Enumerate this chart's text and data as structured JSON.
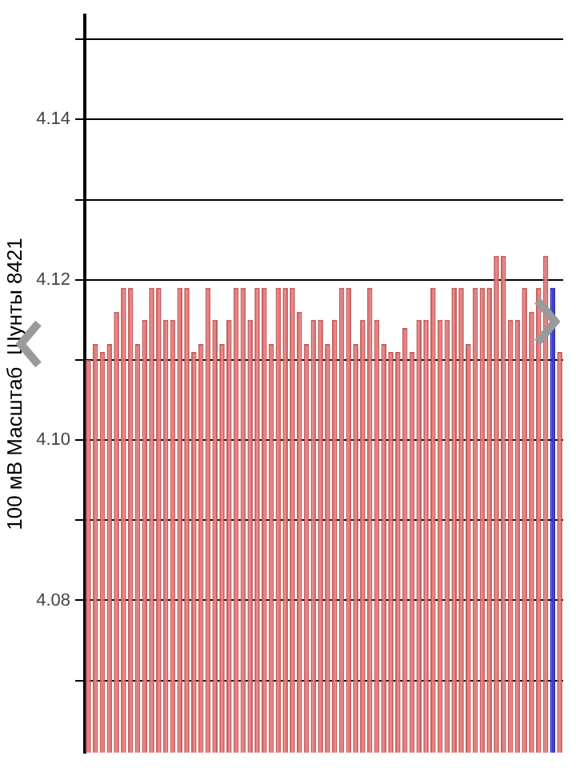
{
  "chart_data": {
    "type": "bar",
    "ylabel": "100 мВ Масштаб  Шунты 8421",
    "categories": [
      null,
      null,
      null,
      null,
      null,
      null,
      null,
      null,
      null,
      null,
      null,
      null,
      null,
      null,
      null,
      null,
      null,
      null,
      null,
      null,
      null,
      null,
      null,
      null,
      null,
      null,
      null,
      null,
      null,
      null,
      null,
      null,
      null,
      null,
      null,
      null,
      null,
      null,
      null,
      null,
      null,
      null,
      null,
      null,
      null,
      null,
      null,
      null,
      null,
      null,
      null,
      null,
      null,
      null,
      null,
      null,
      null,
      null,
      null,
      null,
      null,
      null,
      null,
      null,
      null,
      null,
      null,
      null
    ],
    "values": [
      4.11,
      4.112,
      4.111,
      4.112,
      4.116,
      4.119,
      4.119,
      4.112,
      4.115,
      4.119,
      4.119,
      4.115,
      4.115,
      4.119,
      4.119,
      4.111,
      4.112,
      4.119,
      4.115,
      4.112,
      4.115,
      4.119,
      4.119,
      4.115,
      4.119,
      4.119,
      4.112,
      4.119,
      4.119,
      4.119,
      4.116,
      4.112,
      4.115,
      4.115,
      4.112,
      4.115,
      4.119,
      4.119,
      4.112,
      4.115,
      4.119,
      4.115,
      4.112,
      4.111,
      4.111,
      4.114,
      4.111,
      4.115,
      4.115,
      4.119,
      4.115,
      4.115,
      4.119,
      4.119,
      4.112,
      4.119,
      4.119,
      4.119,
      4.123,
      4.123,
      4.115,
      4.115,
      4.119,
      4.116,
      4.119,
      4.123,
      4.119,
      4.111
    ],
    "colors": [
      "#f07a7a",
      "#f07a7a",
      "#f07a7a",
      "#f07a7a",
      "#f07a7a",
      "#f07a7a",
      "#f07a7a",
      "#f07a7a",
      "#f07a7a",
      "#f07a7a",
      "#f07a7a",
      "#f07a7a",
      "#f07a7a",
      "#f07a7a",
      "#f07a7a",
      "#f07a7a",
      "#f07a7a",
      "#f07a7a",
      "#f07a7a",
      "#f07a7a",
      "#f07a7a",
      "#f07a7a",
      "#f07a7a",
      "#f07a7a",
      "#f07a7a",
      "#f07a7a",
      "#f07a7a",
      "#f07a7a",
      "#f07a7a",
      "#f07a7a",
      "#f07a7a",
      "#f07a7a",
      "#f07a7a",
      "#f07a7a",
      "#f07a7a",
      "#f07a7a",
      "#f07a7a",
      "#f07a7a",
      "#f07a7a",
      "#f07a7a",
      "#f07a7a",
      "#f07a7a",
      "#f07a7a",
      "#f07a7a",
      "#f07a7a",
      "#f07a7a",
      "#f07a7a",
      "#f07a7a",
      "#f07a7a",
      "#f07a7a",
      "#f07a7a",
      "#f07a7a",
      "#f07a7a",
      "#f07a7a",
      "#f07a7a",
      "#f07a7a",
      "#f07a7a",
      "#f07a7a",
      "#f07a7a",
      "#f07a7a",
      "#f07a7a",
      "#f07a7a",
      "#f07a7a",
      "#f07a7a",
      "#f07a7a",
      "#f07a7a",
      "#3b3bd6",
      "#f07a7a"
    ],
    "ylim": [
      4.061,
      4.153
    ],
    "yticks": [
      {
        "value": 4.07,
        "label": null
      },
      {
        "value": 4.08,
        "label": "4.08"
      },
      {
        "value": 4.09,
        "label": null
      },
      {
        "value": 4.1,
        "label": "4.10"
      },
      {
        "value": 4.11,
        "label": null
      },
      {
        "value": 4.12,
        "label": "4.12"
      },
      {
        "value": 4.13,
        "label": null
      },
      {
        "value": 4.14,
        "label": "4.14"
      },
      {
        "value": 4.15,
        "label": null
      }
    ],
    "grid": "y"
  }
}
